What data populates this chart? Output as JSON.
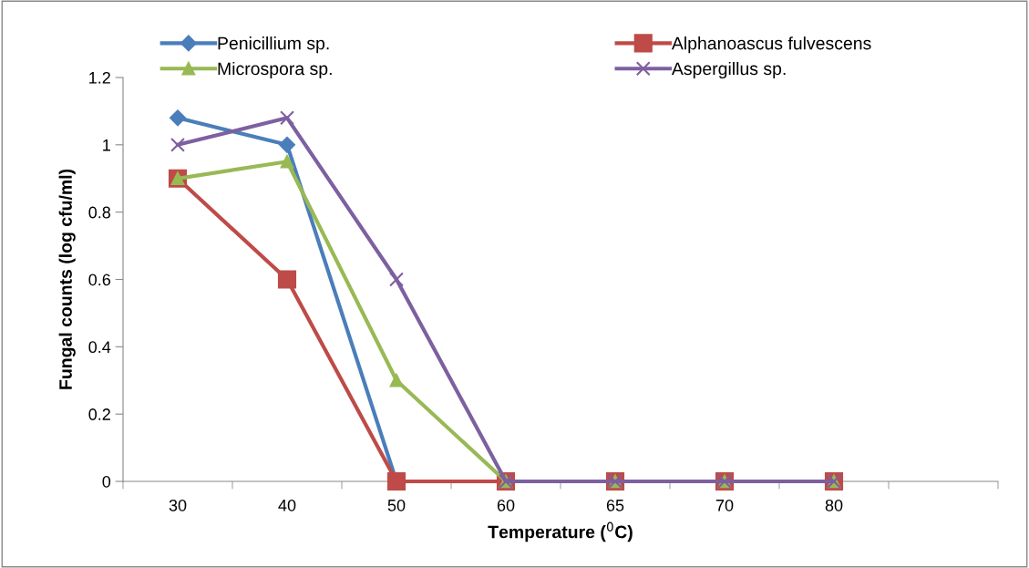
{
  "chart_data": {
    "type": "line",
    "xlabel": "Temperature ($^{0}$C)",
    "ylabel": "Fungal counts (log cfu/ml)",
    "categories": [
      "30",
      "40",
      "50",
      "60",
      "65",
      "70",
      "80",
      null
    ],
    "series": [
      {
        "name": "Penicillium sp.",
        "color": "#4a7ebb",
        "marker": "diamond",
        "values": [
          1.08,
          1.0,
          0,
          null,
          null,
          null,
          null,
          null
        ]
      },
      {
        "name": "Alphanoascus fulvescens",
        "color": "#be4b48",
        "marker": "square",
        "values": [
          0.9,
          0.6,
          0,
          0,
          0,
          0,
          0,
          null
        ]
      },
      {
        "name": "Microspora sp.",
        "color": "#98b954",
        "marker": "triangle",
        "values": [
          0.9,
          0.95,
          0.3,
          0,
          0,
          0,
          0,
          null
        ]
      },
      {
        "name": "Aspergillus sp.",
        "color": "#7d60a0",
        "marker": "cross",
        "values": [
          1.0,
          1.08,
          0.6,
          0,
          0,
          0,
          0,
          null
        ]
      }
    ],
    "ylim": [
      0,
      1.2
    ],
    "yticks": [
      0,
      0.2,
      0.4,
      0.6,
      0.8,
      1,
      1.2
    ],
    "grid": false,
    "legend": "top",
    "line_style": "solid"
  }
}
